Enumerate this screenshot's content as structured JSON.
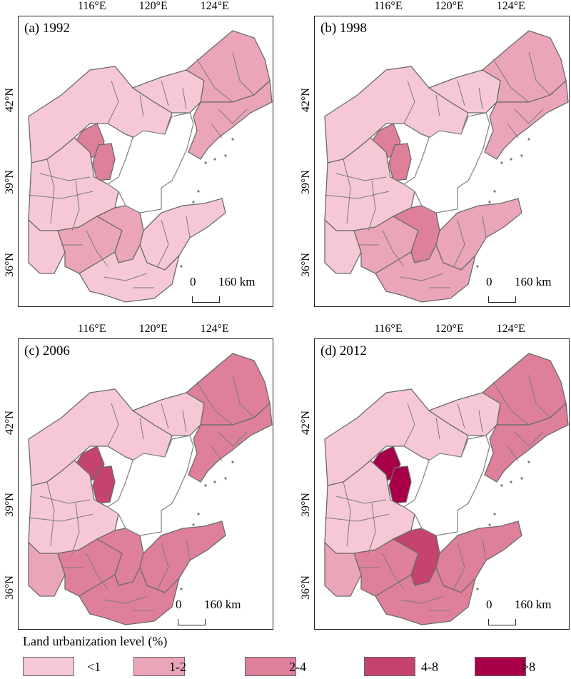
{
  "legend": {
    "title": "Land urbanization level (%)",
    "classes": [
      {
        "label": "<1",
        "color": "#f6c8d5"
      },
      {
        "label": "1-2",
        "color": "#eba5b8"
      },
      {
        "label": "2-4",
        "color": "#de809a"
      },
      {
        "label": "4-8",
        "color": "#c4446e"
      },
      {
        "label": ">8",
        "color": "#a80048"
      }
    ]
  },
  "axes": {
    "lon_labels": [
      "116°E",
      "120°E",
      "124°E"
    ],
    "lat_labels": [
      "42°N",
      "39°N",
      "36°N"
    ]
  },
  "scale_bar": {
    "zero": "0",
    "distance": "160 km"
  },
  "panels": [
    {
      "title": "(a) 1992",
      "beijing": 2,
      "tianjin": 2,
      "liaodong": 1,
      "liaoning_north": 1,
      "shandong_central": 1,
      "shandong_west": 1,
      "shandong_coast": 0,
      "hebei_south": 0,
      "qingdao": 0
    },
    {
      "title": "(b) 1998",
      "beijing": 2,
      "tianjin": 2,
      "liaodong": 1,
      "liaoning_north": 1,
      "shandong_central": 2,
      "shandong_west": 1,
      "shandong_coast": 1,
      "hebei_south": 0,
      "qingdao": 1
    },
    {
      "title": "(c) 2006",
      "beijing": 3,
      "tianjin": 3,
      "liaodong": 2,
      "liaoning_north": 2,
      "shandong_central": 2,
      "shandong_west": 2,
      "shandong_coast": 2,
      "hebei_south": 1,
      "qingdao": 2
    },
    {
      "title": "(d) 2012",
      "beijing": 4,
      "tianjin": 4,
      "liaodong": 2,
      "liaoning_north": 2,
      "shandong_central": 3,
      "shandong_west": 2,
      "shandong_coast": 2,
      "hebei_south": 1,
      "qingdao": 2
    }
  ]
}
